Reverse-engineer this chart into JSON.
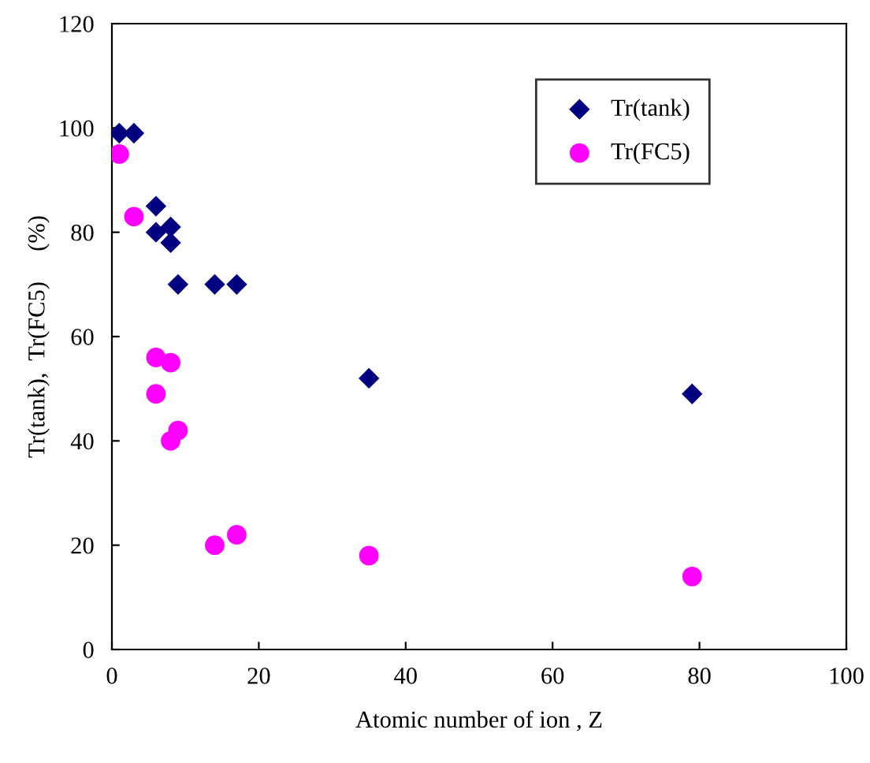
{
  "chart_data": {
    "type": "scatter",
    "xlabel": "Atomic number of ion , Z",
    "ylabel": "Tr(tank),  Tr(FC5)     (%)",
    "xlim": [
      0,
      100
    ],
    "ylim": [
      0,
      120
    ],
    "xticks": [
      0,
      20,
      40,
      60,
      80,
      100
    ],
    "yticks": [
      0,
      20,
      40,
      60,
      80,
      100,
      120
    ],
    "grid": false,
    "legend": "top right",
    "series": [
      {
        "name": "Tr(tank)",
        "color": "#000080",
        "marker": "diamond",
        "x": [
          1,
          3,
          6,
          6,
          8,
          8,
          9,
          14,
          17,
          35,
          79
        ],
        "values": [
          99,
          99,
          85,
          80,
          81,
          78,
          70,
          70,
          70,
          52,
          49
        ]
      },
      {
        "name": "Tr(FC5)",
        "color": "#ff00ff",
        "marker": "circle",
        "x": [
          1,
          3,
          6,
          6,
          8,
          8,
          9,
          14,
          17,
          35,
          79
        ],
        "values": [
          95,
          83,
          56,
          49,
          55,
          40,
          42,
          20,
          22,
          18,
          14
        ]
      }
    ]
  }
}
